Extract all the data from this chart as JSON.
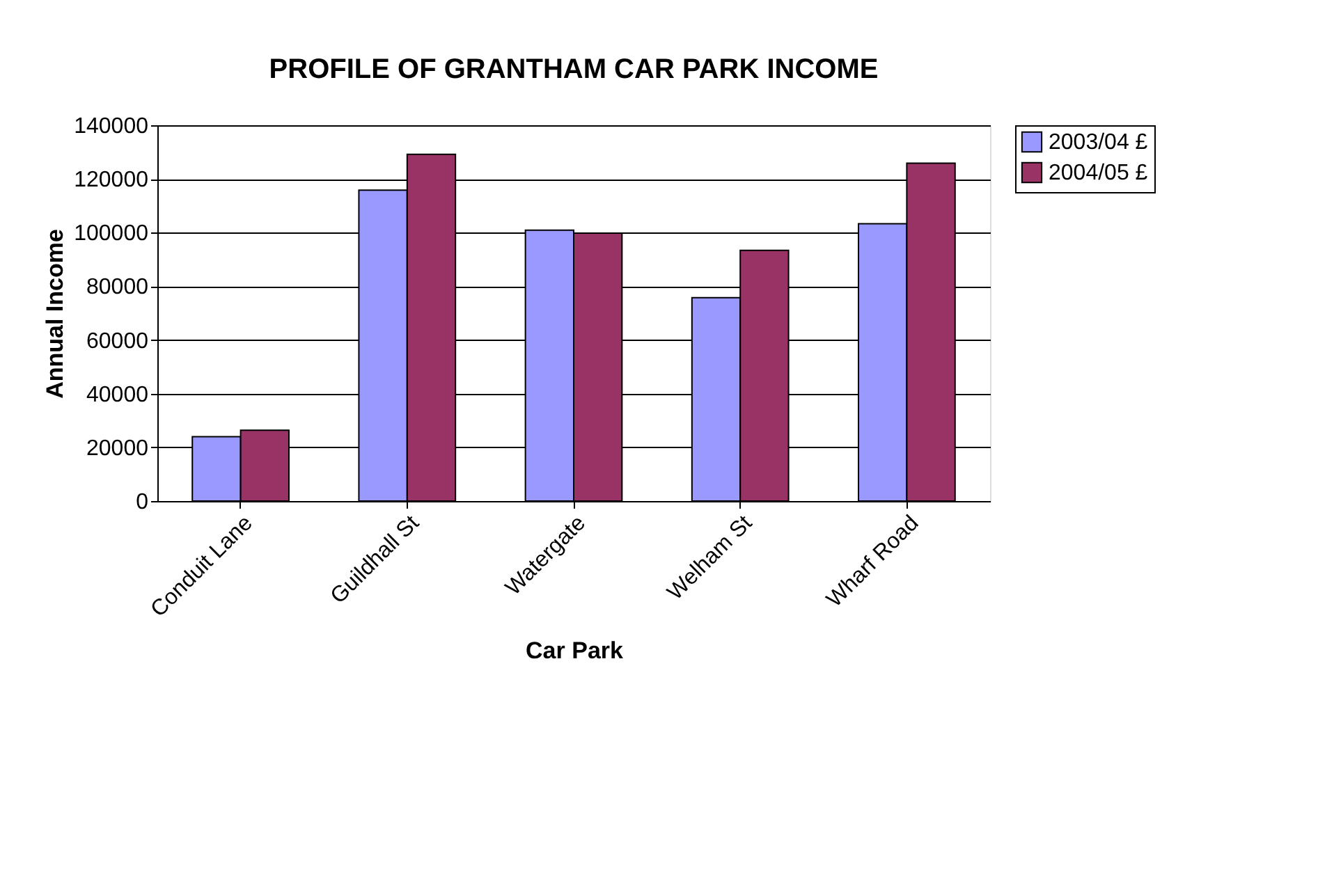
{
  "chart_data": {
    "type": "bar",
    "title": "PROFILE OF GRANTHAM CAR PARK INCOME",
    "xlabel": "Car Park",
    "ylabel": "Annual Income",
    "categories": [
      "Conduit Lane",
      "Guildhall St",
      "Watergate",
      "Welham St",
      "Wharf Road"
    ],
    "series": [
      {
        "name": "2003/04 £",
        "color": "#9999ff",
        "values": [
          24000,
          115800,
          100900,
          75800,
          103300
        ]
      },
      {
        "name": "2004/05 £",
        "color": "#993366",
        "values": [
          26400,
          129200,
          99800,
          93400,
          125900
        ]
      }
    ],
    "ylim": [
      0,
      140000
    ],
    "yticks": [
      0,
      20000,
      40000,
      60000,
      80000,
      100000,
      120000,
      140000
    ],
    "grid": "y",
    "legend": "right"
  }
}
